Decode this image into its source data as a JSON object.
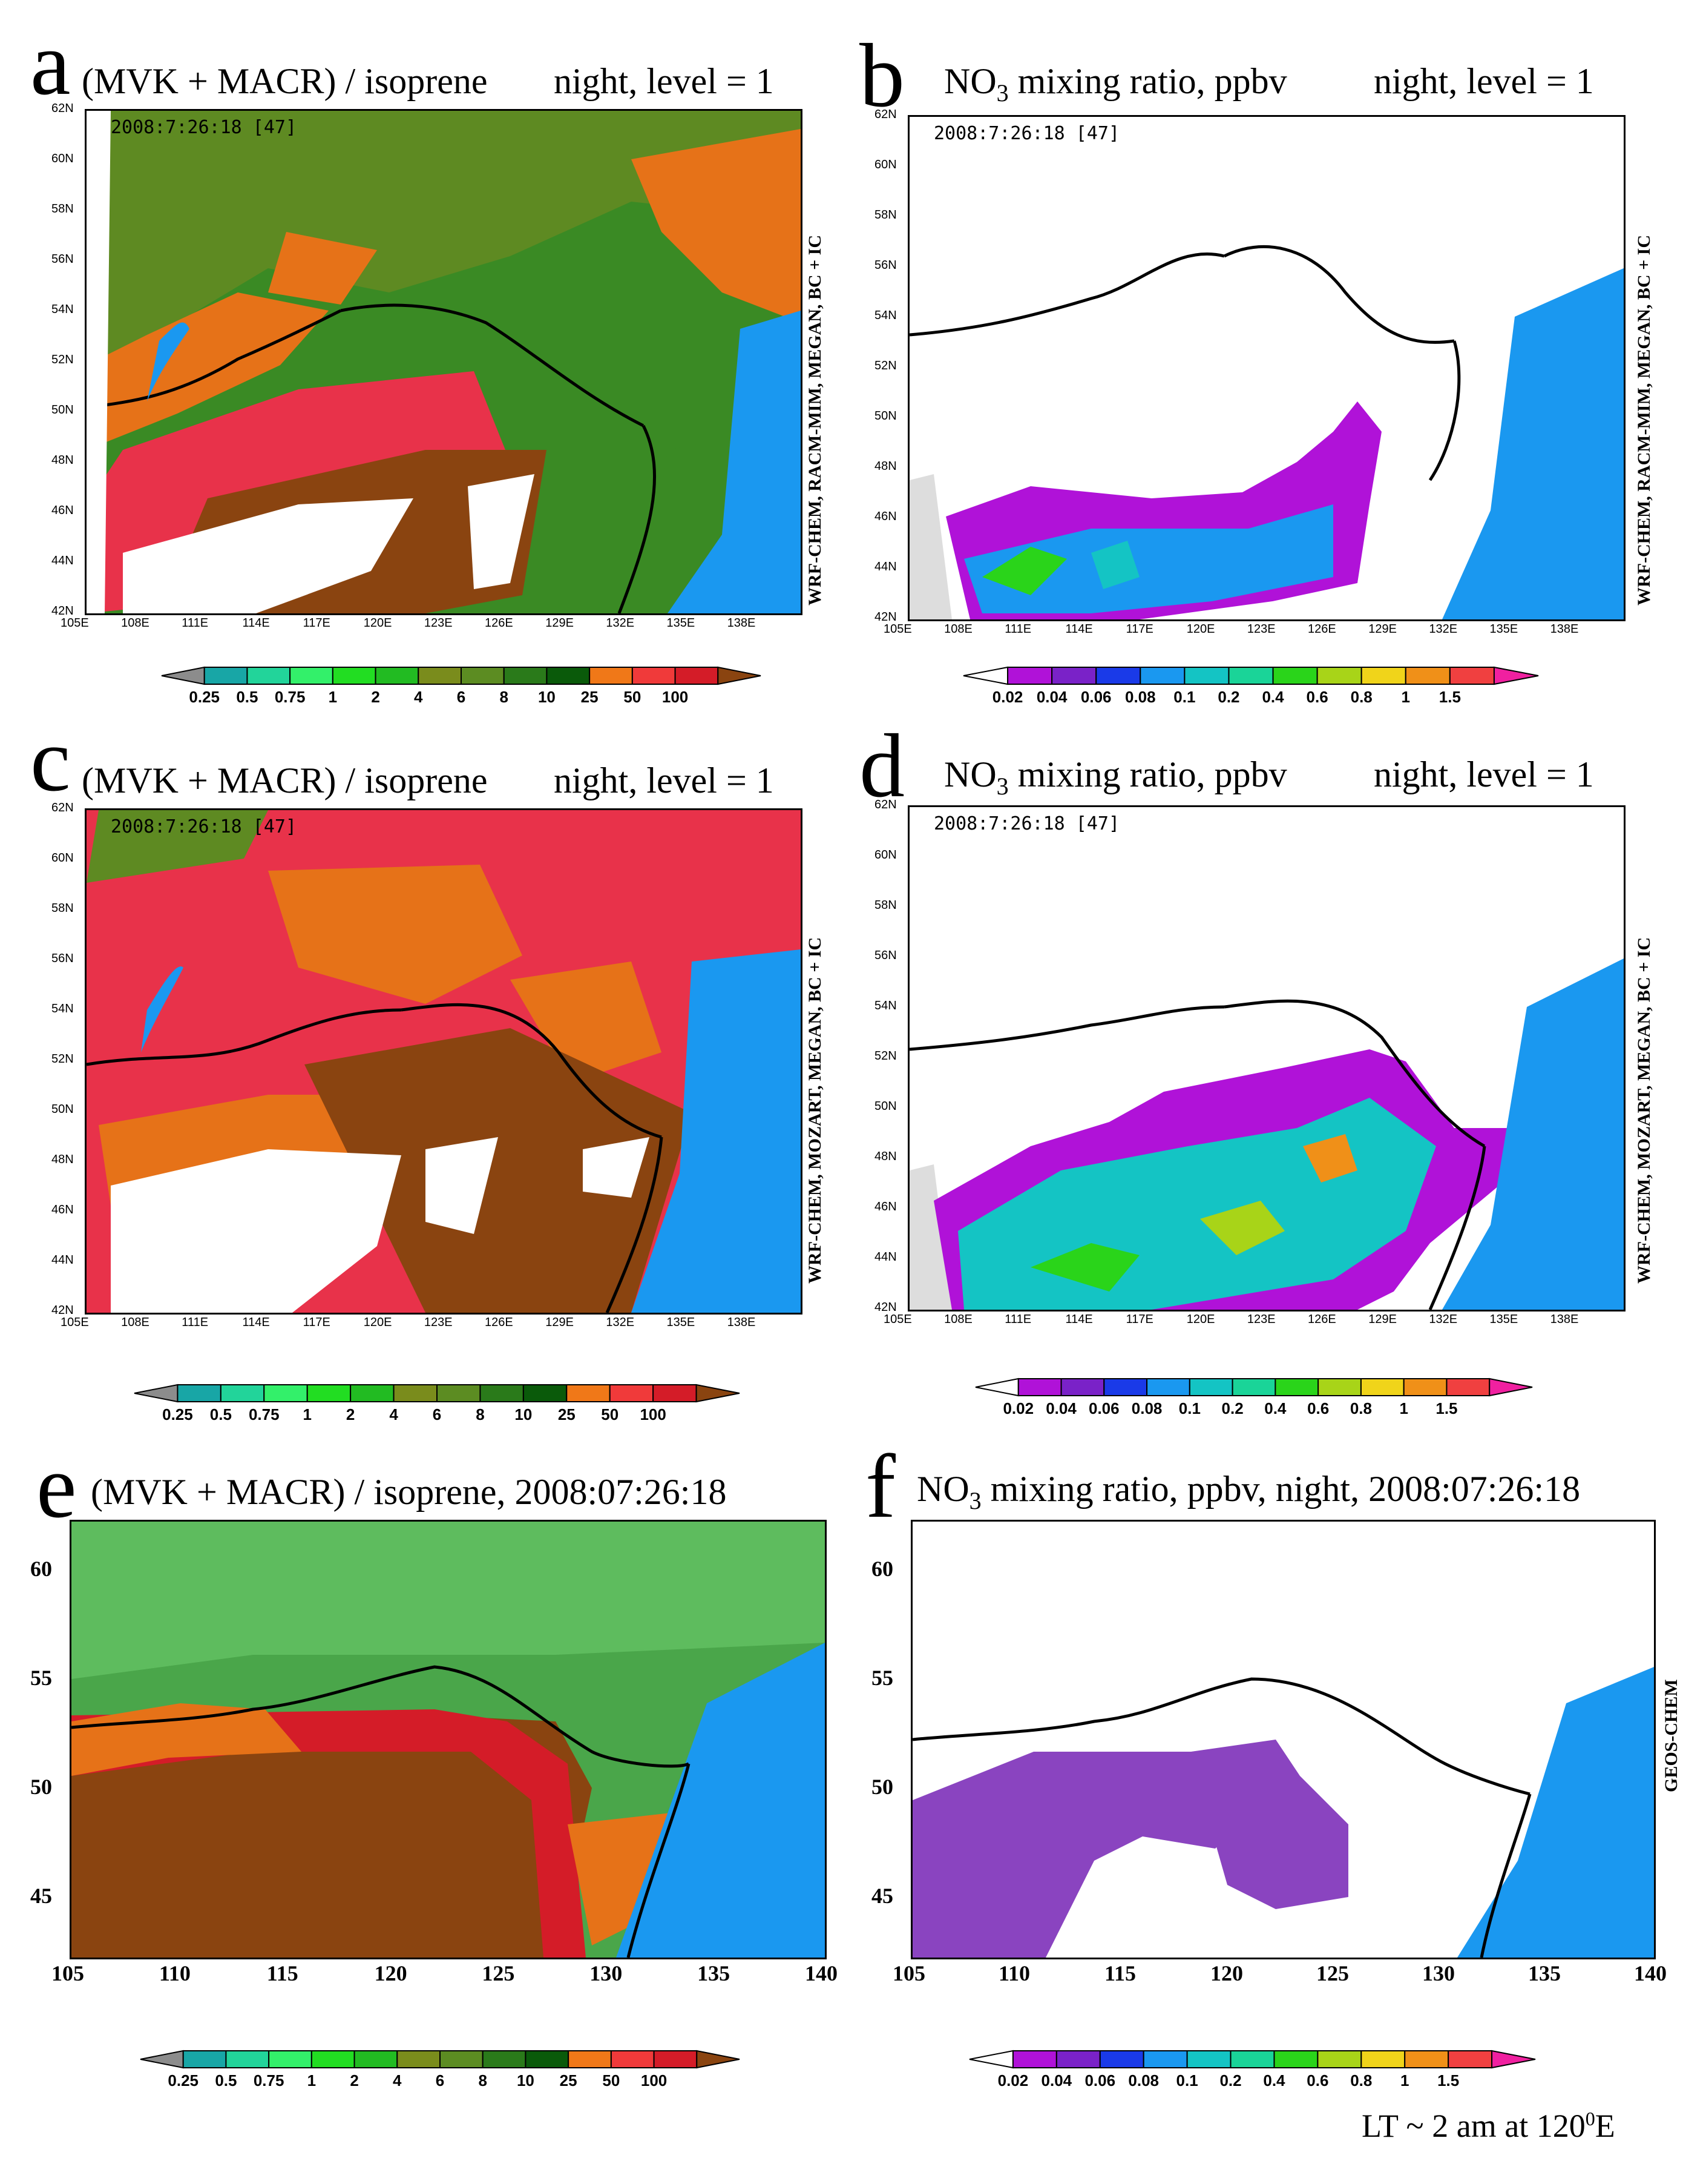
{
  "panels": [
    {
      "id": "a",
      "letter": "a",
      "title": "(MVK + MACR) / isoprene",
      "subtitle": "night, level = 1",
      "stamp": "2008:7:26:18 [47]",
      "side_label": "WRF-CHEM,  RACM-MIM,  MEGAN,  BC + IC",
      "field": "ratio"
    },
    {
      "id": "b",
      "letter": "b",
      "title_prefix": "NO",
      "title_sub": "3",
      "title": " mixing ratio, ppbv",
      "subtitle": "night, level = 1",
      "stamp": "2008:7:26:18 [47]",
      "side_label": "WRF-CHEM,  RACM-MIM,  MEGAN,  BC + IC",
      "field": "no3"
    },
    {
      "id": "c",
      "letter": "c",
      "title": "(MVK + MACR) / isoprene",
      "subtitle": "night, level = 1",
      "stamp": "2008:7:26:18 [47]",
      "side_label": "WRF-CHEM,  MOZART,  MEGAN,  BC + IC",
      "field": "ratio"
    },
    {
      "id": "d",
      "letter": "d",
      "title_prefix": "NO",
      "title_sub": "3",
      "title": " mixing ratio, ppbv",
      "subtitle": "night, level = 1",
      "stamp": "2008:7:26:18 [47]",
      "side_label": "WRF-CHEM,  MOZART,  MEGAN,  BC + IC",
      "field": "no3"
    },
    {
      "id": "e",
      "letter": "e",
      "title": "(MVK + MACR) / isoprene, 2008:07:26:18",
      "field": "ratio"
    },
    {
      "id": "f",
      "letter": "f",
      "title_prefix": "NO",
      "title_sub": "3",
      "title": " mixing ratio, ppbv,   night, 2008:07:26:18",
      "side_label": "GEOS-CHEM",
      "field": "no3"
    }
  ],
  "lat_ticks_wrf": [
    "62N",
    "60N",
    "58N",
    "56N",
    "54N",
    "52N",
    "50N",
    "48N",
    "46N",
    "44N",
    "42N"
  ],
  "lon_ticks_wrf": [
    "105E",
    "108E",
    "111E",
    "114E",
    "117E",
    "120E",
    "123E",
    "126E",
    "129E",
    "132E",
    "135E",
    "138E"
  ],
  "lat_ticks_geos": [
    "60",
    "55",
    "50",
    "45"
  ],
  "lon_ticks_geos": [
    "105",
    "110",
    "115",
    "120",
    "125",
    "130",
    "135",
    "140"
  ],
  "colorbars": {
    "ratio": {
      "labels": [
        "0.25",
        "0.5",
        "0.75",
        "1",
        "2",
        "4",
        "6",
        "8",
        "10",
        "25",
        "50",
        "100"
      ],
      "colors": [
        "#8c8c8c",
        "#18a6a6",
        "#22d49a",
        "#33f06a",
        "#22dd22",
        "#22bb22",
        "#7a8c1c",
        "#5c8c22",
        "#2a7a1a",
        "#0a5a0a",
        "#f07818",
        "#f03a3a",
        "#d41c28",
        "#8a4410"
      ]
    },
    "no3": {
      "labels": [
        "0.02",
        "0.04",
        "0.06",
        "0.08",
        "0.1",
        "0.2",
        "0.4",
        "0.6",
        "0.8",
        "1",
        "1.5"
      ],
      "colors": [
        "#ffffff",
        "#b012d8",
        "#7a22c8",
        "#1a3ae8",
        "#1a98f0",
        "#14c4c4",
        "#1ad498",
        "#2ad41a",
        "#a8d418",
        "#f0d41a",
        "#f09018",
        "#f04040",
        "#f020a0"
      ]
    }
  },
  "footnote_text": "LT ~ 2 am at 120",
  "footnote_sup": "0",
  "footnote_tail": "E"
}
